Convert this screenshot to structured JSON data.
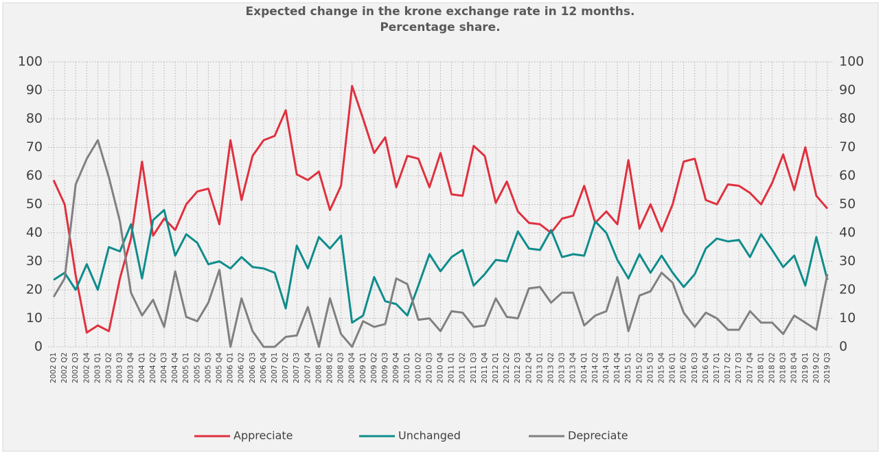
{
  "chart_data": {
    "type": "line",
    "title": "Expected change in the krone exchange rate in 12 months.",
    "subtitle": "Percentage share.",
    "categories": [
      "2002 Q1",
      "2002 Q2",
      "2002 Q3",
      "2002 Q4",
      "2003 Q1",
      "2003 Q2",
      "2003 Q3",
      "2003 Q4",
      "2004 Q1",
      "2004 Q2",
      "2004 Q3",
      "2004 Q4",
      "2005 Q1",
      "2005 Q2",
      "2005 Q3",
      "2005 Q4",
      "2006 Q1",
      "2006 Q2",
      "2006 Q3",
      "2006 Q4",
      "2007 Q1",
      "2007 Q2",
      "2007 Q3",
      "2007 Q4",
      "2008 Q1",
      "2008 Q2",
      "2008 Q3",
      "2008 Q4",
      "2009 Q1",
      "2009 Q2",
      "2009 Q3",
      "2009 Q4",
      "2010 Q1",
      "2010 Q2",
      "2010 Q3",
      "2010 Q4",
      "2011 Q1",
      "2011 Q2",
      "2011 Q3",
      "2011 Q4",
      "2012 Q1",
      "2012 Q2",
      "2012 Q3",
      "2012 Q4",
      "2013 Q1",
      "2013 Q2",
      "2013 Q3",
      "2013 Q4",
      "2014 Q1",
      "2014 Q2",
      "2014 Q3",
      "2014 Q4",
      "2015 Q1",
      "2015 Q2",
      "2015 Q3",
      "2015 Q4",
      "2016 Q1",
      "2016 Q2",
      "2016 Q3",
      "2016 Q4",
      "2017 Q1",
      "2017 Q2",
      "2017 Q3",
      "2017 Q4",
      "2018 Q1",
      "2018 Q2",
      "2018 Q3",
      "2018 Q4",
      "2019 Q1",
      "2019 Q2",
      "2019 Q3"
    ],
    "series": [
      {
        "name": "Appreciate",
        "color": "#e0303e",
        "values": [
          58.5,
          50,
          25,
          5,
          7.5,
          5.5,
          24,
          38,
          65,
          39,
          45,
          41,
          50,
          54.5,
          55.5,
          43,
          72.5,
          51.5,
          67,
          72.5,
          74,
          83,
          60.5,
          58.5,
          61.5,
          48,
          56.5,
          91.5,
          80,
          68,
          73.5,
          56,
          67,
          66,
          56,
          68,
          53.5,
          53,
          70.5,
          67,
          50.5,
          58,
          47.5,
          43.5,
          43,
          40,
          45,
          46,
          56.5,
          43.5,
          47.5,
          43,
          65.5,
          41.5,
          50,
          40.5,
          50,
          65,
          66,
          51.5,
          50,
          57,
          56.5,
          54,
          50,
          57.5,
          67.5,
          55,
          70,
          53,
          48.5
        ]
      },
      {
        "name": "Unchanged",
        "color": "#0f8c8c",
        "values": [
          23.5,
          26,
          20,
          29,
          20,
          35,
          33.5,
          43,
          24,
          44.5,
          48,
          32,
          39.5,
          36.5,
          29,
          30,
          27.5,
          31.5,
          28,
          27.5,
          26,
          13.5,
          35.5,
          27.5,
          38.5,
          34.5,
          39,
          8.5,
          11,
          24.5,
          16,
          15,
          11,
          21.5,
          32.5,
          26.5,
          31.5,
          34,
          21.5,
          25.5,
          30.5,
          30,
          40.5,
          34.5,
          34,
          41,
          31.5,
          32.5,
          32,
          44,
          40,
          30.5,
          24,
          32.5,
          26,
          32,
          26,
          21,
          25.5,
          34.5,
          38,
          37,
          37.5,
          31.5,
          39.5,
          34,
          28,
          32,
          21.5,
          38.5,
          23.5
        ]
      },
      {
        "name": "Depreciate",
        "color": "#808080",
        "values": [
          17.5,
          24,
          57,
          66,
          72.5,
          59.5,
          44,
          19,
          11,
          16.5,
          7,
          26.5,
          10.5,
          9,
          15.5,
          27,
          0,
          17,
          5.5,
          0,
          0,
          3.5,
          4,
          14,
          0,
          17,
          4.5,
          0,
          9,
          7,
          8,
          24,
          22,
          9.5,
          10,
          5.5,
          12.5,
          12,
          7,
          7.5,
          17,
          10.5,
          10,
          20.5,
          21,
          15.5,
          19,
          19,
          7.5,
          11,
          12.5,
          24.5,
          5.5,
          18,
          19.5,
          26,
          22.5,
          12,
          7,
          12,
          10,
          6,
          6,
          12.5,
          8.5,
          8.5,
          4.5,
          11,
          8.5,
          6,
          25.5
        ]
      }
    ],
    "ylim": [
      0,
      100
    ],
    "yticks": [
      0,
      10,
      20,
      30,
      40,
      50,
      60,
      70,
      80,
      90,
      100
    ],
    "y2lim": [
      0,
      100
    ],
    "y2ticks": [
      0,
      10,
      20,
      30,
      40,
      50,
      60,
      70,
      80,
      90,
      100
    ],
    "grid": true,
    "legend": "bottom"
  }
}
